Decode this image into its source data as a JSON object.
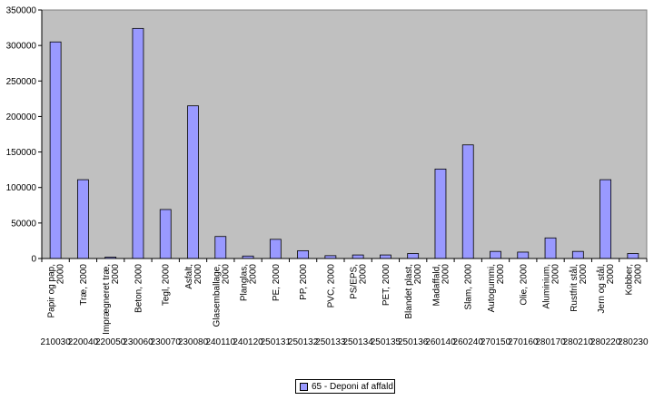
{
  "chart_data": {
    "type": "bar",
    "title": "",
    "xlabel": "",
    "ylabel": "",
    "ylim": [
      0,
      350000
    ],
    "yticks": [
      "0",
      "50000",
      "100000",
      "150000",
      "200000",
      "250000",
      "300000",
      "350000"
    ],
    "grid": false,
    "legend_placement": "bottom-center",
    "colors": {
      "plot_bg": "#c0c0c0",
      "bar": "#9999ff",
      "bar_edge": "#000000"
    },
    "categories": [
      "Papir og pap, 2000",
      "Træ, 2000",
      "Imprægneret træ, 2000",
      "Beton, 2000",
      "Tegl, 2000",
      "Asfalt, 2000",
      "Glasemballage, 2000",
      "Planglas, 2000",
      "PE, 2000",
      "PP, 2000",
      "PVC, 2000",
      "PS/EPS, 2000",
      "PET, 2000",
      "Blandet plast, 2000",
      "Madaffald, 2000",
      "Slam, 2000",
      "Autogummi, 2000",
      "Olie, 2000",
      "Aluminium, 2000",
      "Rustfrit stål, 2000",
      "Jern og stål, 2000",
      "Kobber, 2000"
    ],
    "codes": [
      "210030",
      "220040",
      "220050",
      "230060",
      "230070",
      "230080",
      "240110",
      "240120",
      "250131",
      "250132",
      "250133",
      "250134",
      "250135",
      "250136",
      "260140",
      "260240",
      "270150",
      "270160",
      "280170",
      "280210",
      "280220",
      "280230"
    ],
    "series": [
      {
        "name": "65 - Deponi af affald",
        "values": [
          305000,
          111000,
          2000,
          324000,
          69000,
          215000,
          31000,
          3500,
          27000,
          11000,
          4000,
          5000,
          5000,
          7000,
          126000,
          160000,
          10000,
          9000,
          29000,
          10000,
          111000,
          7000
        ]
      }
    ]
  }
}
